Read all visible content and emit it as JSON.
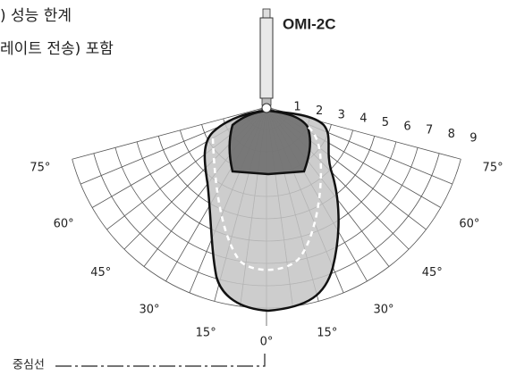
{
  "header": {
    "lines": [
      ") 성능 한계",
      "레이트 전송) 포함"
    ]
  },
  "probe": {
    "label": "OMI-2C"
  },
  "radial_labels": [
    "1",
    "2",
    "3",
    "4",
    "5",
    "6",
    "7",
    "8",
    "9"
  ],
  "angle_labels": {
    "left": [
      "75°",
      "60°",
      "45°",
      "30°",
      "15°"
    ],
    "center": "0°",
    "right": [
      "15°",
      "30°",
      "45°",
      "60°",
      "75°"
    ]
  },
  "centerline": {
    "label": "중심선"
  }
}
